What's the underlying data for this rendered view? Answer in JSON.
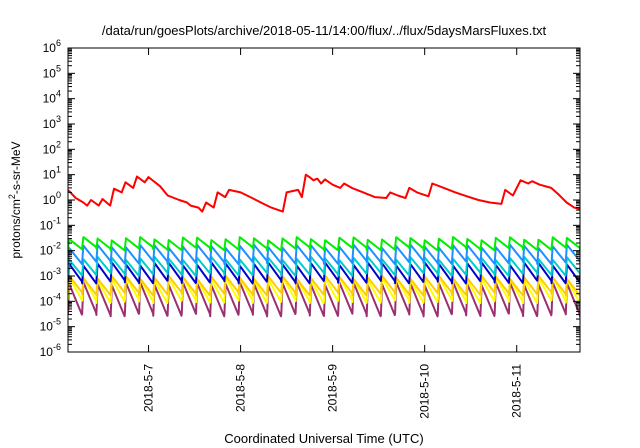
{
  "chart_data": {
    "type": "line",
    "title": "/data/run/goesPlots/archive/2018-05-11/14:00/flux/../flux/5daysMarsFluxes.txt",
    "xlabel": "Coordinated Universal Time (UTC)",
    "ylabel": "protons/cm²-s-sr-MeV",
    "ylabel_parts": {
      "pre": "protons/cm",
      "sup": "2",
      "post": "-s-sr-MeV"
    },
    "yscale": "log",
    "ylim": [
      1e-06,
      1000000.0
    ],
    "y_ticks": [
      {
        "base": "10",
        "exp": "-6",
        "value": 1e-06
      },
      {
        "base": "10",
        "exp": "-5",
        "value": 1e-05
      },
      {
        "base": "10",
        "exp": "-4",
        "value": 0.0001
      },
      {
        "base": "10",
        "exp": "-3",
        "value": 0.001
      },
      {
        "base": "10",
        "exp": "-2",
        "value": 0.01
      },
      {
        "base": "10",
        "exp": "-1",
        "value": 0.1
      },
      {
        "base": "10",
        "exp": "0",
        "value": 1
      },
      {
        "base": "10",
        "exp": "1",
        "value": 10
      },
      {
        "base": "10",
        "exp": "2",
        "value": 100
      },
      {
        "base": "10",
        "exp": "3",
        "value": 1000
      },
      {
        "base": "10",
        "exp": "4",
        "value": 10000
      },
      {
        "base": "10",
        "exp": "5",
        "value": 100000
      },
      {
        "base": "10",
        "exp": "6",
        "value": 1000000
      }
    ],
    "xlim": [
      "2018-05-06T03:00",
      "2018-05-11T16:30"
    ],
    "x_ticks": [
      {
        "label": "2018-5-7",
        "value": "2018-05-07T00:00"
      },
      {
        "label": "2018-5-8",
        "value": "2018-05-08T00:00"
      },
      {
        "label": "2018-5-9",
        "value": "2018-05-09T00:00"
      },
      {
        "label": "2018-5-10",
        "value": "2018-05-10T00:00"
      },
      {
        "label": "2018-5-11",
        "value": "2018-05-11T00:00"
      }
    ],
    "grid": false,
    "legend": "none",
    "series": [
      {
        "color": "#ff0000",
        "points": [
          [
            "2018-05-06T03:00",
            2.5
          ],
          [
            "2018-05-06T05:00",
            1.2
          ],
          [
            "2018-05-06T07:00",
            0.8
          ],
          [
            "2018-05-06T08:00",
            0.6
          ],
          [
            "2018-05-06T09:00",
            1.0
          ],
          [
            "2018-05-06T11:00",
            0.6
          ],
          [
            "2018-05-06T12:00",
            1.1
          ],
          [
            "2018-05-06T14:00",
            0.6
          ],
          [
            "2018-05-06T15:00",
            2.8
          ],
          [
            "2018-05-06T17:00",
            2.0
          ],
          [
            "2018-05-06T18:00",
            5.0
          ],
          [
            "2018-05-06T20:00",
            3.0
          ],
          [
            "2018-05-06T21:00",
            8.5
          ],
          [
            "2018-05-06T23:00",
            5.0
          ],
          [
            "2018-05-07T00:00",
            8.0
          ],
          [
            "2018-05-07T03:00",
            3.5
          ],
          [
            "2018-05-07T05:00",
            1.5
          ],
          [
            "2018-05-07T08:00",
            1.0
          ],
          [
            "2018-05-07T10:00",
            0.8
          ],
          [
            "2018-05-07T11:00",
            0.6
          ],
          [
            "2018-05-07T13:00",
            0.5
          ],
          [
            "2018-05-07T14:00",
            0.35
          ],
          [
            "2018-05-07T15:00",
            0.8
          ],
          [
            "2018-05-07T17:00",
            0.5
          ],
          [
            "2018-05-07T18:00",
            2.0
          ],
          [
            "2018-05-07T20:00",
            1.3
          ],
          [
            "2018-05-07T21:00",
            2.5
          ],
          [
            "2018-05-08T00:00",
            2.0
          ],
          [
            "2018-05-08T03:00",
            1.2
          ],
          [
            "2018-05-08T06:00",
            0.7
          ],
          [
            "2018-05-08T08:00",
            0.5
          ],
          [
            "2018-05-08T11:00",
            0.35
          ],
          [
            "2018-05-08T12:00",
            2.0
          ],
          [
            "2018-05-08T15:00",
            2.5
          ],
          [
            "2018-05-08T16:00",
            1.3
          ],
          [
            "2018-05-08T17:00",
            10.0
          ],
          [
            "2018-05-08T18:00",
            8.0
          ],
          [
            "2018-05-08T19:00",
            6.0
          ],
          [
            "2018-05-08T20:00",
            7.0
          ],
          [
            "2018-05-08T21:00",
            4.5
          ],
          [
            "2018-05-08T22:00",
            6.5
          ],
          [
            "2018-05-09T00:00",
            4.0
          ],
          [
            "2018-05-09T02:00",
            3.0
          ],
          [
            "2018-05-09T03:00",
            4.5
          ],
          [
            "2018-05-09T05:00",
            3.0
          ],
          [
            "2018-05-09T08:00",
            2.0
          ],
          [
            "2018-05-09T11:00",
            1.3
          ],
          [
            "2018-05-09T14:00",
            1.2
          ],
          [
            "2018-05-09T15:00",
            2.0
          ],
          [
            "2018-05-09T17:00",
            1.5
          ],
          [
            "2018-05-09T19:00",
            1.2
          ],
          [
            "2018-05-09T20:00",
            3.0
          ],
          [
            "2018-05-09T22:00",
            2.0
          ],
          [
            "2018-05-10T01:00",
            1.4
          ],
          [
            "2018-05-10T02:00",
            4.5
          ],
          [
            "2018-05-10T05:00",
            3.0
          ],
          [
            "2018-05-10T08:00",
            2.0
          ],
          [
            "2018-05-10T11:00",
            1.4
          ],
          [
            "2018-05-10T14:00",
            1.0
          ],
          [
            "2018-05-10T17:00",
            0.8
          ],
          [
            "2018-05-10T20:00",
            0.7
          ],
          [
            "2018-05-10T21:00",
            2.5
          ],
          [
            "2018-05-10T23:00",
            1.5
          ],
          [
            "2018-05-11T01:00",
            6.0
          ],
          [
            "2018-05-11T03:00",
            4.5
          ],
          [
            "2018-05-11T04:00",
            5.5
          ],
          [
            "2018-05-11T06:00",
            4.0
          ],
          [
            "2018-05-11T09:00",
            3.0
          ],
          [
            "2018-05-11T11:00",
            1.6
          ],
          [
            "2018-05-11T13:00",
            0.8
          ],
          [
            "2018-05-11T15:00",
            0.5
          ],
          [
            "2018-05-11T16:30",
            0.45
          ]
        ]
      },
      {
        "color": "#00ee00",
        "peak": 0.03,
        "trough": 0.012
      },
      {
        "color": "#1e90ff",
        "peak": 0.015,
        "trough": 0.0035
      },
      {
        "color": "#00cccc",
        "peak": 0.005,
        "trough": 0.0012
      },
      {
        "color": "#0000cd",
        "peak": 0.003,
        "trough": 0.0006
      },
      {
        "color": "#ffcc00",
        "peak": 0.0009,
        "trough": 0.0002
      },
      {
        "color": "#ffff00",
        "peak": 0.0008,
        "trough": 0.0001
      },
      {
        "color": "#9b3070",
        "peak": 0.0005,
        "trough": 3e-05
      }
    ],
    "oscillation_cycles": 36
  }
}
